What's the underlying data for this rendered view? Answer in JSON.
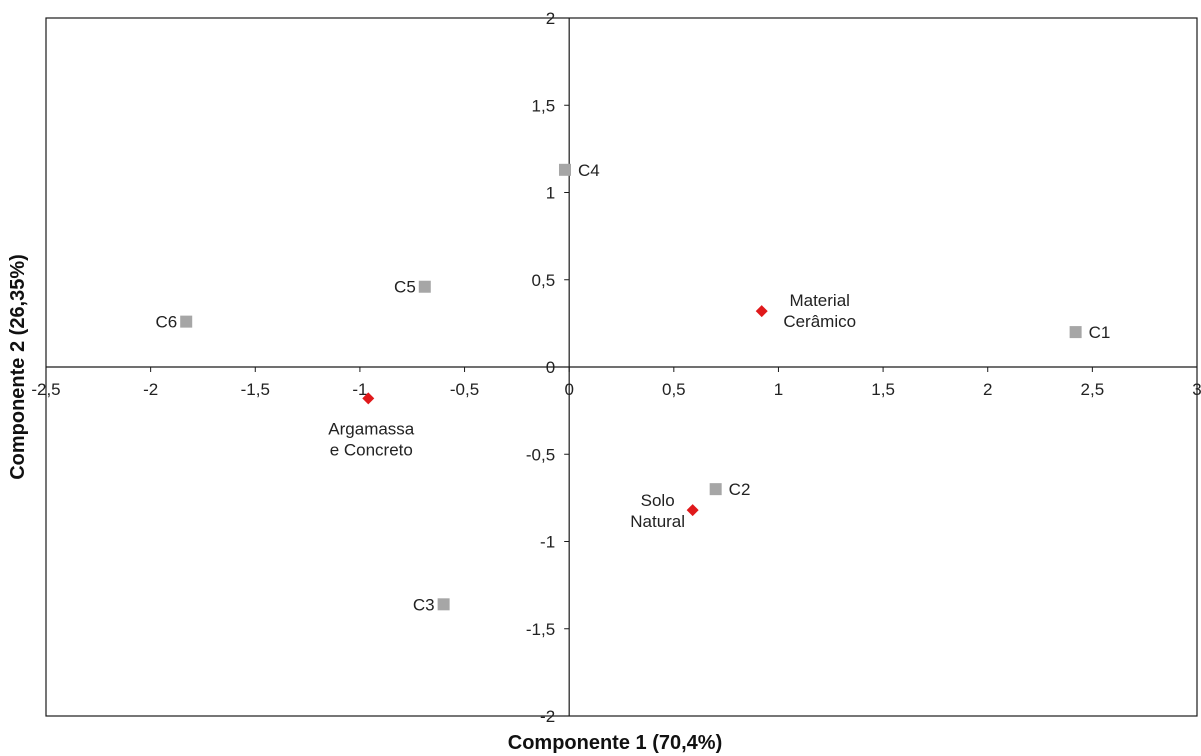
{
  "chart_data": {
    "type": "scatter",
    "title": "",
    "xlabel": "Componente 1 (70,4%)",
    "ylabel": "Componente 2 (26,35%)",
    "xlim": [
      -2.5,
      3
    ],
    "ylim": [
      -2,
      2
    ],
    "x_ticks": [
      -2.5,
      -2,
      -1.5,
      -1,
      -0.5,
      0,
      0.5,
      1,
      1.5,
      2,
      2.5,
      3
    ],
    "x_tick_labels": [
      "-2,5",
      "-2",
      "-1,5",
      "-1",
      "-0,5",
      "0",
      "0,5",
      "1",
      "1,5",
      "2",
      "2,5",
      "3"
    ],
    "y_ticks": [
      -2,
      -1.5,
      -1,
      -0.5,
      0,
      0.5,
      1,
      1.5,
      2
    ],
    "y_tick_labels": [
      "-2",
      "-1,5",
      "-1",
      "-0,5",
      "0",
      "0,5",
      "1",
      "1,5",
      "2"
    ],
    "grid": false,
    "legend": "none",
    "series": [
      {
        "marker": "square",
        "color": "#a6a6a6",
        "points": [
          {
            "label": "C1",
            "x": 2.42,
            "y": 0.2,
            "label_side": "right"
          },
          {
            "label": "C2",
            "x": 0.7,
            "y": -0.7,
            "label_side": "right"
          },
          {
            "label": "C3",
            "x": -0.6,
            "y": -1.36,
            "label_side": "left"
          },
          {
            "label": "C4",
            "x": -0.02,
            "y": 1.13,
            "label_side": "right"
          },
          {
            "label": "C5",
            "x": -0.69,
            "y": 0.46,
            "label_side": "left"
          },
          {
            "label": "C6",
            "x": -1.83,
            "y": 0.26,
            "label_side": "left"
          }
        ]
      },
      {
        "marker": "diamond",
        "color": "#e0191b",
        "points": [
          {
            "label_lines": [
              "Material",
              "Cerâmico"
            ],
            "x": 0.92,
            "y": 0.32,
            "label_side": "right-upper"
          },
          {
            "label_lines": [
              "Solo",
              "Natural"
            ],
            "x": 0.59,
            "y": -0.82,
            "label_side": "left-upper"
          },
          {
            "label_lines": [
              "Argamassa",
              "e Concreto"
            ],
            "x": -0.96,
            "y": -0.18,
            "label_side": "below"
          }
        ]
      }
    ]
  }
}
